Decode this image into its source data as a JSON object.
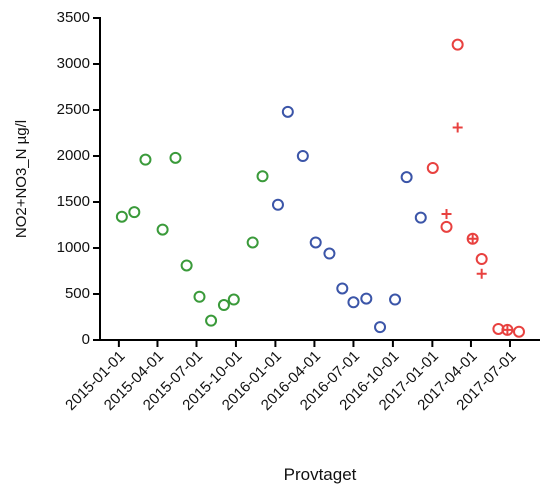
{
  "chart_data": {
    "type": "scatter",
    "x_label": "Provtaget",
    "y_label": "NO2+NO3_N µg/l",
    "xlim": [
      "2014-11-18",
      "2017-09-09"
    ],
    "xticks": [
      "2015-01-01",
      "2015-04-01",
      "2015-07-01",
      "2015-10-01",
      "2016-01-01",
      "2016-04-01",
      "2016-07-01",
      "2016-10-01",
      "2017-01-01",
      "2017-04-01",
      "2017-07-01"
    ],
    "ylim": [
      0,
      3500
    ],
    "yticks": [
      0,
      500,
      1000,
      1500,
      2000,
      2500,
      3000,
      3500
    ],
    "series": [
      {
        "color": "#3a9a3a",
        "marker": "circle",
        "x": [
          "2015-01-08",
          "2015-02-06",
          "2015-03-04",
          "2015-04-13",
          "2015-05-13",
          "2015-06-08",
          "2015-07-08",
          "2015-08-04",
          "2015-09-03",
          "2015-09-26",
          "2015-11-09",
          "2015-12-02"
        ],
        "values": [
          1340,
          1390,
          1960,
          1200,
          1980,
          810,
          470,
          210,
          380,
          440,
          1060,
          1780
        ]
      },
      {
        "color": "#3b55a8",
        "marker": "circle",
        "x": [
          "2016-01-07",
          "2016-01-30",
          "2016-03-05",
          "2016-04-04",
          "2016-05-06",
          "2016-06-05",
          "2016-07-01",
          "2016-07-31",
          "2016-09-01",
          "2016-10-06",
          "2016-11-02",
          "2016-12-05"
        ],
        "values": [
          1470,
          2480,
          2000,
          1060,
          940,
          560,
          410,
          450,
          140,
          440,
          1770,
          1330
        ]
      },
      {
        "color": "#e8413f",
        "marker": "circle",
        "x": [
          "2017-01-02",
          "2017-02-03",
          "2017-03-01",
          "2017-04-05",
          "2017-04-26",
          "2017-06-04",
          "2017-06-25",
          "2017-07-22"
        ],
        "values": [
          1870,
          1230,
          3210,
          1100,
          880,
          120,
          110,
          90
        ]
      },
      {
        "color": "#e8413f",
        "marker": "plus",
        "x": [
          "2017-02-03",
          "2017-03-01",
          "2017-04-05",
          "2017-04-26",
          "2017-06-25"
        ],
        "values": [
          1370,
          2310,
          1100,
          720,
          110
        ]
      }
    ]
  }
}
